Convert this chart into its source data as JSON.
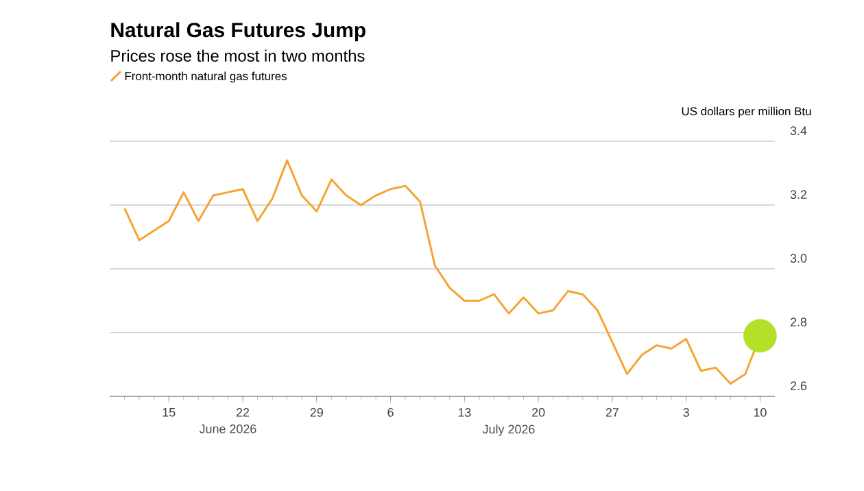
{
  "chart_data": {
    "type": "line",
    "title": "Natural Gas Futures Jump",
    "subtitle": "Prices rose the most in two months",
    "ylabel": "US dollars per million Btu",
    "categories": [
      null,
      null,
      null,
      "15",
      null,
      null,
      null,
      null,
      "22",
      null,
      null,
      null,
      null,
      "29",
      null,
      null,
      null,
      null,
      "6",
      null,
      null,
      null,
      null,
      "13",
      null,
      null,
      null,
      null,
      "20",
      null,
      null,
      null,
      null,
      "27",
      null,
      null,
      null,
      null,
      "3",
      null,
      null,
      null,
      null,
      "10"
    ],
    "series": [
      {
        "type": "scatter",
        "color": "#b5e02a",
        "x": [
          "10"
        ],
        "values": [
          2.79
        ]
      },
      {
        "name": "Front-month natural gas futures",
        "color": "#f5a431",
        "values": [
          3.19,
          3.09,
          3.12,
          3.15,
          3.24,
          3.15,
          3.23,
          3.24,
          3.25,
          3.15,
          3.22,
          3.34,
          3.23,
          3.18,
          3.28,
          3.23,
          3.2,
          3.23,
          3.25,
          3.26,
          3.21,
          3.01,
          2.94,
          2.9,
          2.9,
          2.92,
          2.86,
          2.91,
          2.86,
          2.87,
          2.93,
          2.92,
          2.87,
          2.77,
          2.67,
          2.73,
          2.76,
          2.75,
          2.78,
          2.68,
          2.69,
          2.64,
          2.67,
          2.79
        ]
      }
    ],
    "ylim": [
      2.6,
      3.4
    ],
    "yticks": [
      2.6,
      2.8,
      {
        "value": 3,
        "label": "3.0"
      },
      3.2,
      3.4
    ],
    "grid": "y",
    "legend": "top left",
    "marker": "none",
    "line_style": "solid",
    "annotations": [
      "June 2026",
      "July 2026"
    ]
  }
}
